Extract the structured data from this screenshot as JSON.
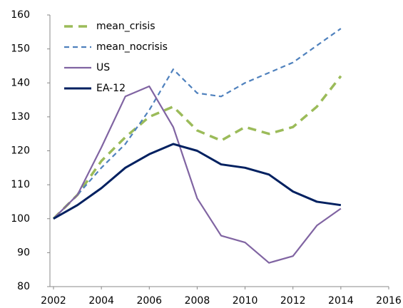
{
  "chart_data": {
    "type": "line",
    "x": [
      2002,
      2003,
      2004,
      2005,
      2006,
      2007,
      2008,
      2009,
      2010,
      2011,
      2012,
      2013,
      2014
    ],
    "series": [
      {
        "name": "mean_crisis",
        "color": "#9bbb59",
        "dash": "12 8",
        "width": 3.5,
        "values": [
          100,
          107,
          117,
          124,
          130,
          133,
          126,
          123,
          127,
          125,
          127,
          133,
          142
        ]
      },
      {
        "name": "mean_nocrisis",
        "color": "#4f81bd",
        "dash": "7 5",
        "width": 2.2,
        "values": [
          100,
          107,
          115,
          122,
          132,
          144,
          137,
          136,
          140,
          143,
          146,
          151,
          156
        ]
      },
      {
        "name": "US",
        "color": "#8064a2",
        "dash": null,
        "width": 2.2,
        "values": [
          100,
          107,
          121,
          136,
          139,
          127,
          106,
          95,
          93,
          87,
          89,
          98,
          103
        ]
      },
      {
        "name": "EA-12",
        "color": "#002060",
        "dash": null,
        "width": 3,
        "values": [
          100,
          104,
          109,
          115,
          119,
          122,
          120,
          116,
          115,
          113,
          108,
          105,
          104
        ]
      }
    ],
    "xlim": [
      2002,
      2016
    ],
    "xticks": [
      2002,
      2004,
      2006,
      2008,
      2010,
      2012,
      2014,
      2016
    ],
    "ylim": [
      80,
      160
    ],
    "yticks": [
      80,
      90,
      100,
      110,
      120,
      130,
      140,
      150,
      160
    ],
    "grid": false,
    "legend": "upper left"
  }
}
